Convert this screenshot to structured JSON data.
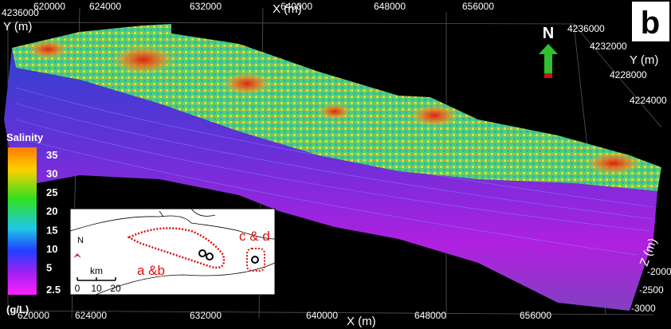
{
  "panel_label": "b",
  "x_axis": {
    "label": "X (m)",
    "top_ticks": [
      "620000",
      "624000",
      "632000",
      "640000",
      "648000",
      "656000"
    ],
    "bottom_ticks": [
      "620000",
      "624000",
      "632000",
      "640000",
      "648000",
      "656000"
    ]
  },
  "y_axis_left": {
    "tick": "4236000",
    "label": "Y (m)"
  },
  "y_axis_right": {
    "ticks": [
      "4236000",
      "4232000",
      "4228000",
      "4224000"
    ],
    "label": "Y (m)"
  },
  "z_axis": {
    "label": "Z (m)",
    "ticks": [
      "-2000",
      "-2500",
      "-3000"
    ]
  },
  "north_arrow": "N",
  "colorbar": {
    "title": "Salinity",
    "ticks": [
      "35",
      "30",
      "25",
      "20",
      "15",
      "10",
      "5",
      "2.5"
    ],
    "unit": "(g/L)"
  },
  "inset": {
    "north": "N",
    "scale_unit": "km",
    "scale_ticks": [
      "0",
      "10",
      "20"
    ],
    "labels": [
      "a &b",
      "c & d"
    ]
  }
}
